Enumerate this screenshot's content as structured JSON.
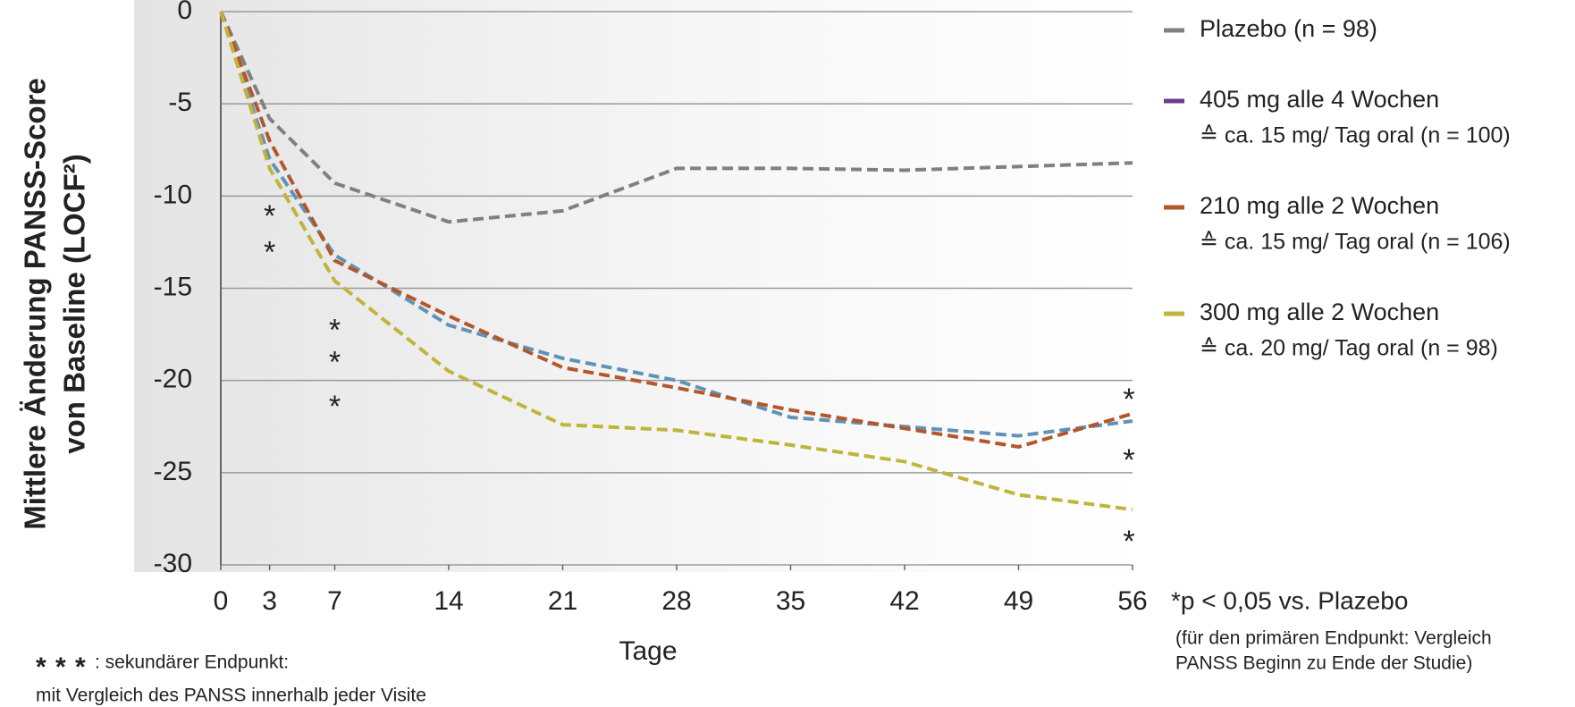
{
  "chart_data": {
    "type": "line",
    "y_label_lines": [
      "Mittlere Änderung PANSS-Score",
      "von Baseline (LOCF²)"
    ],
    "x_label": "Tage",
    "x": [
      0,
      3,
      7,
      14,
      21,
      28,
      35,
      42,
      49,
      56
    ],
    "xlim": [
      0,
      56
    ],
    "xticks": [
      0,
      3,
      7,
      14,
      21,
      28,
      35,
      42,
      49,
      56
    ],
    "ylim": [
      -30,
      0
    ],
    "yticks": [
      0,
      -5,
      -10,
      -15,
      -20,
      -25,
      -30
    ],
    "grid": true,
    "legend": "right",
    "series": [
      {
        "name": "Plazebo (n = 98)",
        "color": "#808080",
        "legend_color": "#808080",
        "values": [
          0,
          -5.8,
          -9.3,
          -11.4,
          -10.8,
          -8.5,
          -8.5,
          -8.6,
          -8.4,
          -8.2
        ]
      },
      {
        "name": "405 mg alle 4 Wochen",
        "note": "≙ ca. 15 mg/ Tag oral (n = 100)",
        "color": "#5e93b8",
        "legend_color": "#6b3d8e",
        "values": [
          0,
          -8,
          -13.2,
          -17,
          -18.8,
          -20,
          -22,
          -22.5,
          -23,
          -22.2
        ]
      },
      {
        "name": "210 mg alle 2 Wochen",
        "note": "≙ ca. 15 mg/ Tag oral (n = 106)",
        "color": "#b5562a",
        "legend_color": "#b5562a",
        "values": [
          0,
          -7,
          -13.5,
          -16.5,
          -19.3,
          -20.4,
          -21.6,
          -22.6,
          -23.6,
          -21.8
        ]
      },
      {
        "name": "300 mg alle 2 Wochen",
        "note": "≙ ca. 20 mg/ Tag oral (n = 98)",
        "color": "#c1b43a",
        "legend_color": "#c1b43a",
        "values": [
          0,
          -8.5,
          -14.6,
          -19.5,
          -22.4,
          -22.7,
          -23.5,
          -24.4,
          -26.2,
          -27
        ]
      }
    ],
    "significance": [
      {
        "x": 3,
        "series": 1,
        "label": "*"
      },
      {
        "x": 3,
        "series": 3,
        "label": "*"
      },
      {
        "x": 7,
        "series": 1,
        "label": "*"
      },
      {
        "x": 7,
        "series": 2,
        "label": "*"
      },
      {
        "x": 7,
        "series": 3,
        "label": "*"
      },
      {
        "x": 56,
        "series": 2,
        "label": "*"
      },
      {
        "x": 56,
        "series": 1,
        "label": "*"
      },
      {
        "x": 56,
        "series": 3,
        "label": "*"
      }
    ],
    "footnote": "*p < 0,05 vs. Plazebo",
    "footnote_detail": [
      "(für den primären Endpunkt: Vergleich",
      "PANSS Beginn zu Ende der Studie)"
    ],
    "secondary_note": {
      "symbols": [
        {
          "label": "*",
          "series": 3
        },
        {
          "label": "*",
          "series": 1
        },
        {
          "label": "*",
          "series": 2
        }
      ],
      "text": ": sekundärer Endpunkt:",
      "text2": "mit Vergleich des PANSS innerhalb jeder Visite"
    }
  }
}
